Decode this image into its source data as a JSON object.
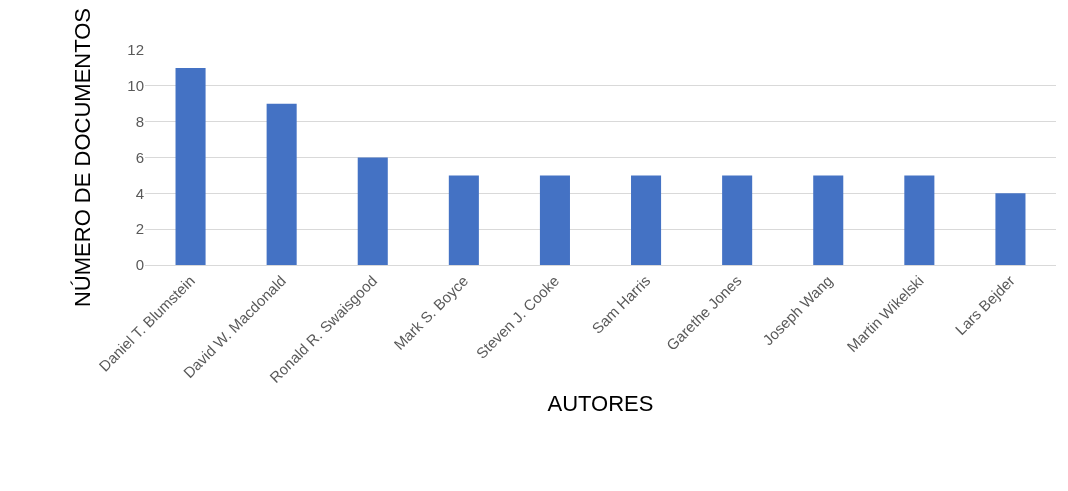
{
  "chart_data": {
    "type": "bar",
    "xlabel": "AUTORES",
    "ylabel": "NÚMERO DE DOCUMENTOS",
    "categories": [
      "Daniel T. Blumstein",
      "David W. Macdonald",
      "Ronald R. Swaisgood",
      "Mark S. Boyce",
      "Steven J. Cooke",
      "Sam Harris",
      "Garethe Jones",
      "Joseph Wang",
      "Martin Wikelski",
      "Lars Bejder"
    ],
    "values": [
      11,
      9,
      6,
      5,
      5,
      5,
      5,
      5,
      5,
      4
    ],
    "color": "#4472c4",
    "ylim": [
      0,
      12
    ],
    "yticks": [
      0,
      2,
      4,
      6,
      8,
      10,
      12
    ],
    "grid": "y",
    "legend": false
  }
}
